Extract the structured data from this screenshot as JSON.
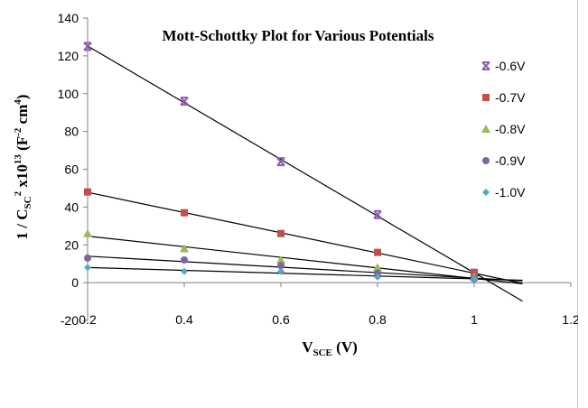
{
  "chart_data": {
    "type": "scatter",
    "title": "Mott-Schottky Plot for Various Potentials",
    "xlabel": {
      "main": "V",
      "sub": "SCE",
      "rest": " (V)"
    },
    "ylabel": {
      "p1": "1 / C",
      "sub1": "SC",
      "sup1": "2",
      "p2": " x10",
      "sup2": "13",
      "p3": " (F",
      "sup3": "-2",
      "p4": " cm",
      "sup4": "4",
      "p5": ")"
    },
    "x_ticks": [
      "0.2",
      "0.4",
      "0.6",
      "0.8",
      "1",
      "1.2"
    ],
    "x_tick_values": [
      0.2,
      0.4,
      0.6,
      0.8,
      1.0,
      1.2
    ],
    "y_ticks": [
      "-20",
      "0",
      "20",
      "40",
      "60",
      "80",
      "100",
      "120",
      "140"
    ],
    "y_tick_values": [
      -20,
      0,
      20,
      40,
      60,
      80,
      100,
      120,
      140
    ],
    "xlim": [
      0.2,
      1.2
    ],
    "ylim": [
      -20,
      140
    ],
    "x": [
      0.2,
      0.4,
      0.6,
      0.8,
      1.0
    ],
    "series": [
      {
        "name": "-0.6V",
        "marker": "asterisk",
        "color": "#8e5db3",
        "values": [
          125,
          96,
          64,
          36,
          5
        ],
        "fit_end_x": 1.1
      },
      {
        "name": "-0.7V",
        "marker": "square",
        "color": "#c0504d",
        "values": [
          48,
          37,
          26,
          16,
          5
        ],
        "fit_end_x": 1.1
      },
      {
        "name": "-0.8V",
        "marker": "triangle",
        "color": "#9bbb59",
        "values": [
          26,
          18,
          12,
          8,
          3
        ],
        "fit_end_x": 1.1
      },
      {
        "name": "-0.9V",
        "marker": "circle",
        "color": "#8064a2",
        "values": [
          13,
          12,
          9,
          5,
          2
        ],
        "fit_end_x": 1.1
      },
      {
        "name": "-1.0V",
        "marker": "diamond",
        "color": "#4bacc6",
        "values": [
          8,
          6,
          6,
          3,
          2
        ],
        "fit_end_x": 1.1
      }
    ],
    "grid": false,
    "legend_position": "right"
  }
}
